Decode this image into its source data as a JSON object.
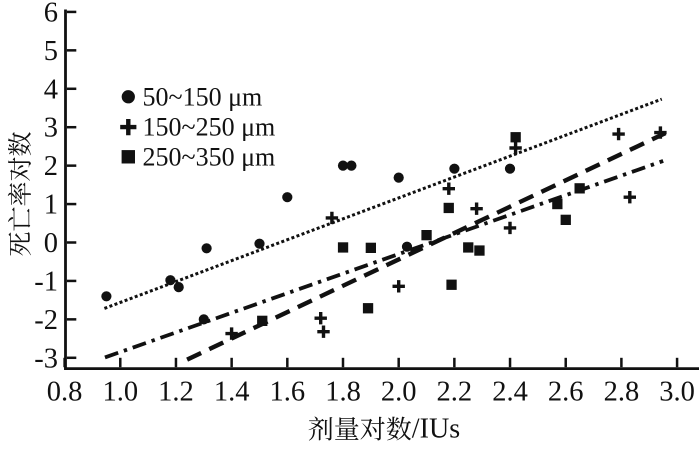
{
  "figure": {
    "background": "#ffffff",
    "ink_color": "#111111",
    "description": "Scatter plot with three particle-size series and fitted trend lines"
  },
  "chart_data": {
    "type": "scatter",
    "title": "",
    "xlabel": "剂量对数/IUs",
    "ylabel": "死亡率对数",
    "xlim": [
      0.8,
      3.02
    ],
    "ylim": [
      -3.28,
      6.08
    ],
    "xticks": [
      "0.8",
      "1.0",
      "1.2",
      "1.4",
      "1.6",
      "1.8",
      "2.0",
      "2.2",
      "2.4",
      "2.6",
      "2.8",
      "3.0"
    ],
    "yticks": [
      "-3",
      "-2",
      "-1",
      "0",
      "1",
      "2",
      "3",
      "4",
      "5",
      "6"
    ],
    "grid": false,
    "legend_position": "upper-left",
    "series": [
      {
        "name": "50~150 μm",
        "marker": "circle",
        "points": [
          [
            0.95,
            -1.4
          ],
          [
            1.18,
            -0.98
          ],
          [
            1.21,
            -1.16
          ],
          [
            1.3,
            -2.0
          ],
          [
            1.31,
            -0.15
          ],
          [
            1.5,
            -0.03
          ],
          [
            1.6,
            1.18
          ],
          [
            1.8,
            2.0
          ],
          [
            1.83,
            2.0
          ],
          [
            2.0,
            1.69
          ],
          [
            2.03,
            -0.11
          ],
          [
            2.2,
            1.92
          ],
          [
            2.4,
            1.92
          ]
        ]
      },
      {
        "name": "150~250 μm",
        "marker": "plus",
        "points": [
          [
            1.4,
            -2.37
          ],
          [
            1.72,
            -1.97
          ],
          [
            1.73,
            -2.32
          ],
          [
            1.76,
            0.64
          ],
          [
            2.0,
            -1.14
          ],
          [
            2.18,
            1.4
          ],
          [
            2.28,
            0.88
          ],
          [
            2.4,
            0.38
          ],
          [
            2.42,
            2.46
          ],
          [
            2.79,
            2.82
          ],
          [
            2.83,
            1.18
          ],
          [
            2.94,
            2.86
          ]
        ]
      },
      {
        "name": "250~350 μm",
        "marker": "square",
        "points": [
          [
            1.51,
            -2.04
          ],
          [
            1.8,
            -0.13
          ],
          [
            1.89,
            -1.71
          ],
          [
            1.9,
            -0.14
          ],
          [
            2.1,
            0.19
          ],
          [
            2.18,
            0.9
          ],
          [
            2.19,
            -1.1
          ],
          [
            2.25,
            -0.13
          ],
          [
            2.29,
            -0.21
          ],
          [
            2.42,
            2.74
          ],
          [
            2.57,
            1.0
          ],
          [
            2.6,
            0.59
          ],
          [
            2.65,
            1.41
          ]
        ]
      }
    ],
    "trend_lines": [
      {
        "series": "50~150 μm",
        "style": "dotted",
        "x_start": 0.943,
        "x_end": 2.945,
        "slope": 2.72,
        "intercept": -4.28
      },
      {
        "series": "150~250 μm",
        "style": "dashed",
        "x_start": 1.24,
        "x_end": 2.958,
        "slope": 3.43,
        "intercept": -7.3
      },
      {
        "series": "250~350 μm",
        "style": "dash-dot",
        "x_start": 0.945,
        "x_end": 2.95,
        "slope": 2.55,
        "intercept": -5.4
      }
    ]
  }
}
